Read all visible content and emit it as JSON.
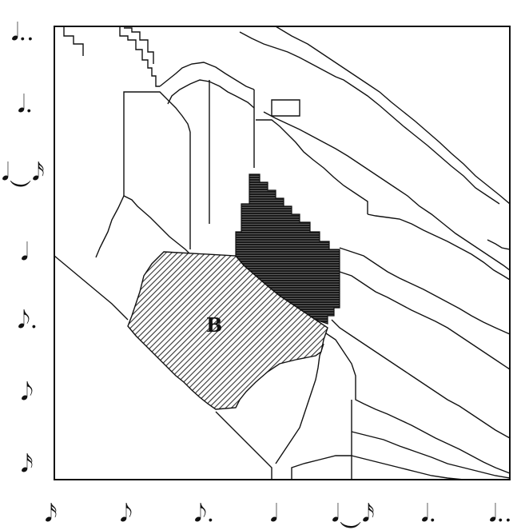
{
  "diagram": {
    "y_axis_symbols": [
      "𝅘𝅥..",
      "𝅘𝅥.",
      "𝅘𝅥‿𝅘𝅥𝅯",
      "𝅘𝅥",
      "𝅘𝅥𝅮.",
      "𝅘𝅥𝅮",
      "𝅘𝅥𝅯"
    ],
    "x_axis_symbols": [
      "𝅘𝅥𝅯",
      "𝅘𝅥𝅮",
      "𝅘𝅥𝅮.",
      "𝅘𝅥",
      "𝅘𝅥‿𝅘𝅥𝅯",
      "𝅘𝅥.",
      "𝅘𝅥.."
    ],
    "highlighted_region_label": "B",
    "colors": {
      "line": "#111111",
      "background": "#ffffff",
      "dark_region": "#2a2a2a",
      "hatched_region": "#555555"
    }
  }
}
